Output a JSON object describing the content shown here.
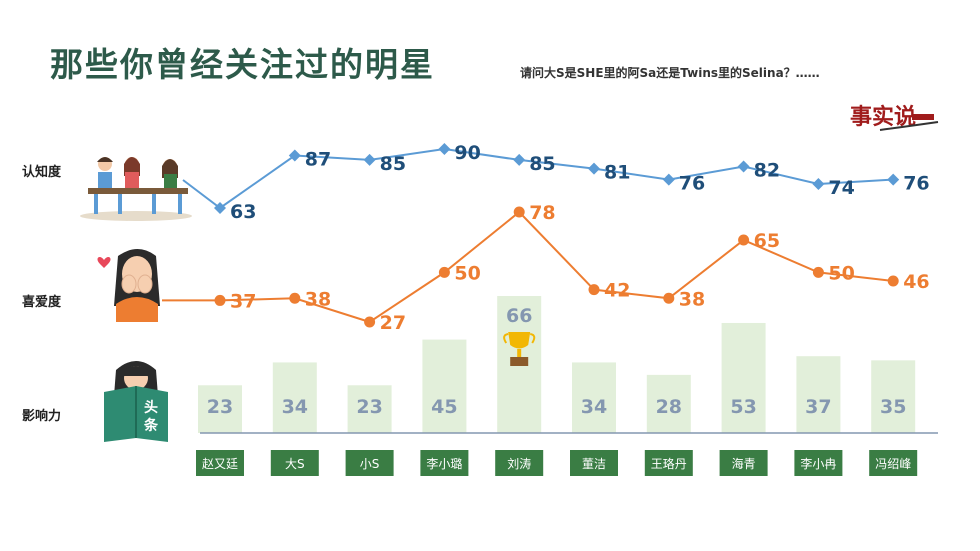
{
  "title": "那些你曾经关注过的明星",
  "subtitle": "请问大S是SHE里的阿Sa还是Twins里的Selina？……",
  "row_labels": {
    "awareness": "认知度",
    "affection": "喜爱度",
    "influence": "影响力"
  },
  "logo_text": "事实说",
  "book_text": "头条",
  "colors": {
    "awareness": "#5b9bd5",
    "awareness_label": "#1f4e79",
    "affection": "#ed7d31",
    "bar": "#e2efda",
    "bar_label": "#8497b0",
    "name_box": "#3a7d44",
    "title": "#2d5a4a"
  },
  "chart_data": {
    "type": "line",
    "categories": [
      "赵又廷",
      "大S",
      "小S",
      "李小璐",
      "刘涛",
      "董洁",
      "王珞丹",
      "海青",
      "李小冉",
      "冯绍峰"
    ],
    "series": [
      {
        "name": "认知度",
        "values": [
          63,
          87,
          85,
          90,
          85,
          81,
          76,
          82,
          74,
          76
        ]
      },
      {
        "name": "喜爱度",
        "values": [
          37,
          38,
          27,
          50,
          78,
          42,
          38,
          65,
          50,
          46
        ]
      },
      {
        "name": "影响力",
        "values": [
          23,
          34,
          23,
          45,
          66,
          34,
          28,
          53,
          37,
          35
        ]
      }
    ],
    "highlight": {
      "category": "刘涛",
      "icon": "trophy-icon"
    }
  }
}
